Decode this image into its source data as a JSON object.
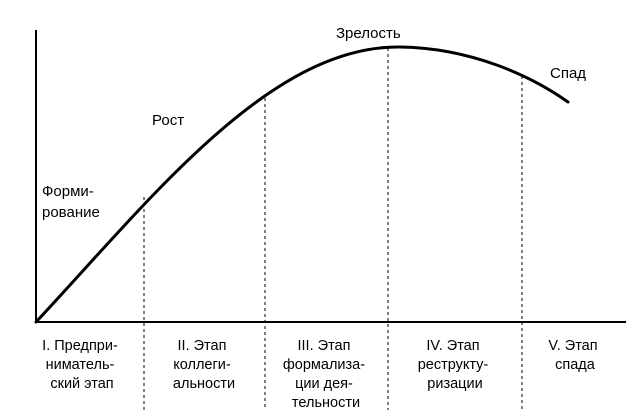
{
  "phase_labels": {
    "formation": [
      "Форми-",
      "рование"
    ],
    "growth": "Рост",
    "maturity": "Зрелость",
    "decline": "Спад"
  },
  "stages": [
    [
      "I. Предпри-",
      "ниматель-",
      "ский этап"
    ],
    [
      "II. Этап",
      "коллеги-",
      "альности"
    ],
    [
      "III. Этап",
      "формализа-",
      "ции дея-",
      "тельности"
    ],
    [
      "IV. Этап",
      "реструкту-",
      "ризации"
    ],
    [
      "V. Этап",
      "спада"
    ]
  ]
}
